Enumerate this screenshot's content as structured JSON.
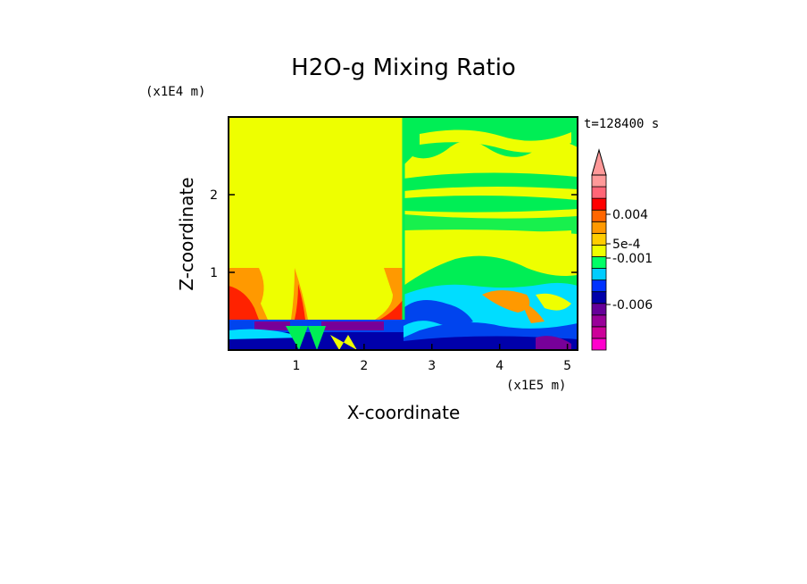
{
  "chart_data": {
    "type": "heatmap",
    "title": "H2O-g Mixing Ratio",
    "xlabel": "X-coordinate",
    "ylabel": "Z-coordinate",
    "x_units": "(x1E5 m)",
    "y_units": "(x1E4 m)",
    "time_label": "t=128400 s",
    "xlim": [
      0,
      5.15
    ],
    "ylim": [
      0,
      3.0
    ],
    "x_ticks": [
      "1",
      "2",
      "3",
      "4",
      "5"
    ],
    "y_ticks": [
      "1",
      "2"
    ],
    "colorbar": {
      "colors": [
        "#ff00cc",
        "#cc0099",
        "#990099",
        "#660099",
        "#0000aa",
        "#0033ff",
        "#00ccff",
        "#00ff66",
        "#eeff00",
        "#ffcc00",
        "#ff9900",
        "#ff6600",
        "#ff0000",
        "#ff6677",
        "#ff9999"
      ],
      "labels": [
        "-0.006",
        "-0.001",
        "5e-4",
        "0.004"
      ],
      "extend": "max"
    }
  },
  "colors": {
    "yellow": "#eeff00",
    "green": "#00ee55",
    "cyan": "#00ddff",
    "blue": "#0044ee",
    "navy": "#0000aa",
    "purple": "#770099",
    "orange": "#ff9900",
    "red": "#ff2200"
  }
}
